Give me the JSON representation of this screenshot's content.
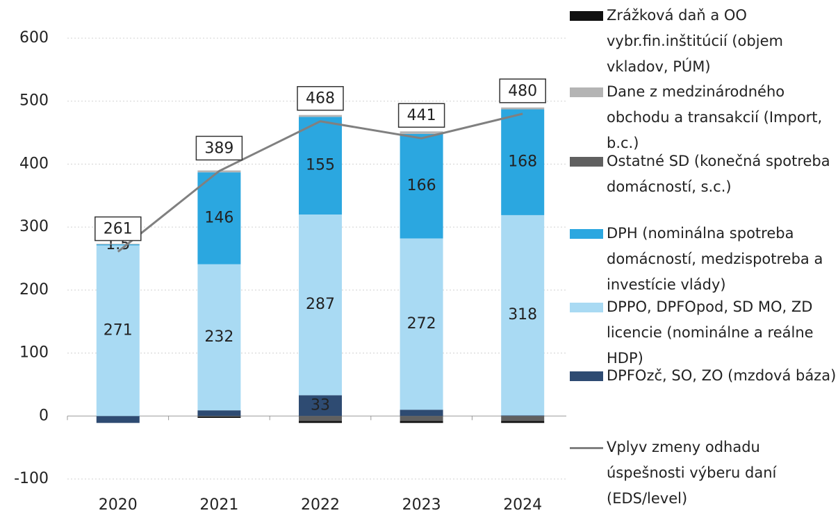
{
  "chart_data": {
    "type": "stacked-bar-line",
    "categories": [
      "2020",
      "2021",
      "2022",
      "2023",
      "2024"
    ],
    "ylim": [
      -100,
      600
    ],
    "yticks": [
      -100,
      0,
      100,
      200,
      300,
      400,
      500,
      600
    ],
    "grid": true,
    "series": [
      {
        "name": "DPFOzč, SO, ZO (mzdová báza)",
        "color": "#2e4b72",
        "values": [
          -11,
          9,
          33,
          10,
          1
        ],
        "value_labels": [
          null,
          null,
          "33",
          null,
          null
        ]
      },
      {
        "name": "DPPO, DPFOpod, SD MO, ZD licencie (nominálne a reálne HDP)",
        "color": "#a9daf3",
        "values": [
          271,
          232,
          287,
          272,
          318
        ],
        "show_labels": true
      },
      {
        "name": "DPH (nominálna spotreba domácností, medzispotreba a investície vlády)",
        "color": "#2ba7e0",
        "values": [
          1.5,
          146,
          155,
          166,
          168
        ],
        "show_labels": true
      },
      {
        "name": "Ostatné SD (konečná spotreba domácností, s.c.)",
        "color": "#606060",
        "values": [
          0,
          -1,
          -8,
          -8,
          -8
        ]
      },
      {
        "name": "Dane z medzinárodného obchodu a transakcií (Import, b.c.)",
        "color": "#b4b4b4",
        "values": [
          1,
          3,
          3,
          4,
          3
        ]
      },
      {
        "name": "Zrážková daň a OO vybr.fin.inštitúcií (objem vkladov, PÚM)",
        "color": "#111111",
        "values": [
          0,
          -2,
          -3,
          -3,
          -3
        ]
      },
      {
        "name": "Vplyv zmeny odhadu úspešnosti výberu daní (EDS/level)",
        "color": "#808080",
        "type": "line",
        "values": [
          261,
          389,
          468,
          441,
          480
        ],
        "show_labels": true
      }
    ]
  }
}
